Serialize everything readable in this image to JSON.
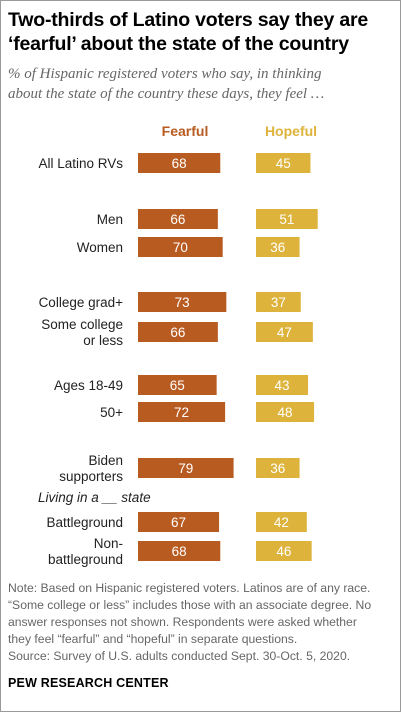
{
  "title_lines": [
    "Two-thirds of Latino voters say they are",
    "‘fearful’ about the state of the country"
  ],
  "subtitle_lines": [
    "% of Hispanic registered voters who say, in thinking",
    "about the state of the country these days, they feel …"
  ],
  "columns": {
    "fearful": "Fearful",
    "hopeful": "Hopeful"
  },
  "colors": {
    "fearful": "#b85b21",
    "hopeful": "#ddb33b"
  },
  "section_label": "Living in a __ state",
  "note_lines": [
    "Note: Based on Hispanic registered voters. Latinos are of any race.",
    "“Some college or less” includes those with an associate degree. No",
    "answer responses not shown. Respondents were asked whether",
    "they feel “fearful” and “hopeful” in separate questions.",
    "Source: Survey of U.S. adults conducted Sept. 30-Oct. 5, 2020."
  ],
  "footer": "PEW RESEARCH CENTER",
  "chart_data": {
    "type": "bar",
    "categories": [
      [
        "All Latino RVs"
      ],
      [
        "Men"
      ],
      [
        "Women"
      ],
      [
        "College grad+"
      ],
      [
        "Some college",
        "or less"
      ],
      [
        "Ages 18-49"
      ],
      [
        "50+"
      ],
      [
        "Biden",
        "supporters"
      ],
      [
        "Battleground"
      ],
      [
        "Non-",
        "battleground"
      ]
    ],
    "series": [
      {
        "name": "Fearful",
        "values": [
          68,
          66,
          70,
          73,
          66,
          65,
          72,
          79,
          67,
          68
        ]
      },
      {
        "name": "Hopeful",
        "values": [
          45,
          51,
          36,
          37,
          47,
          43,
          48,
          36,
          42,
          46
        ]
      }
    ]
  }
}
